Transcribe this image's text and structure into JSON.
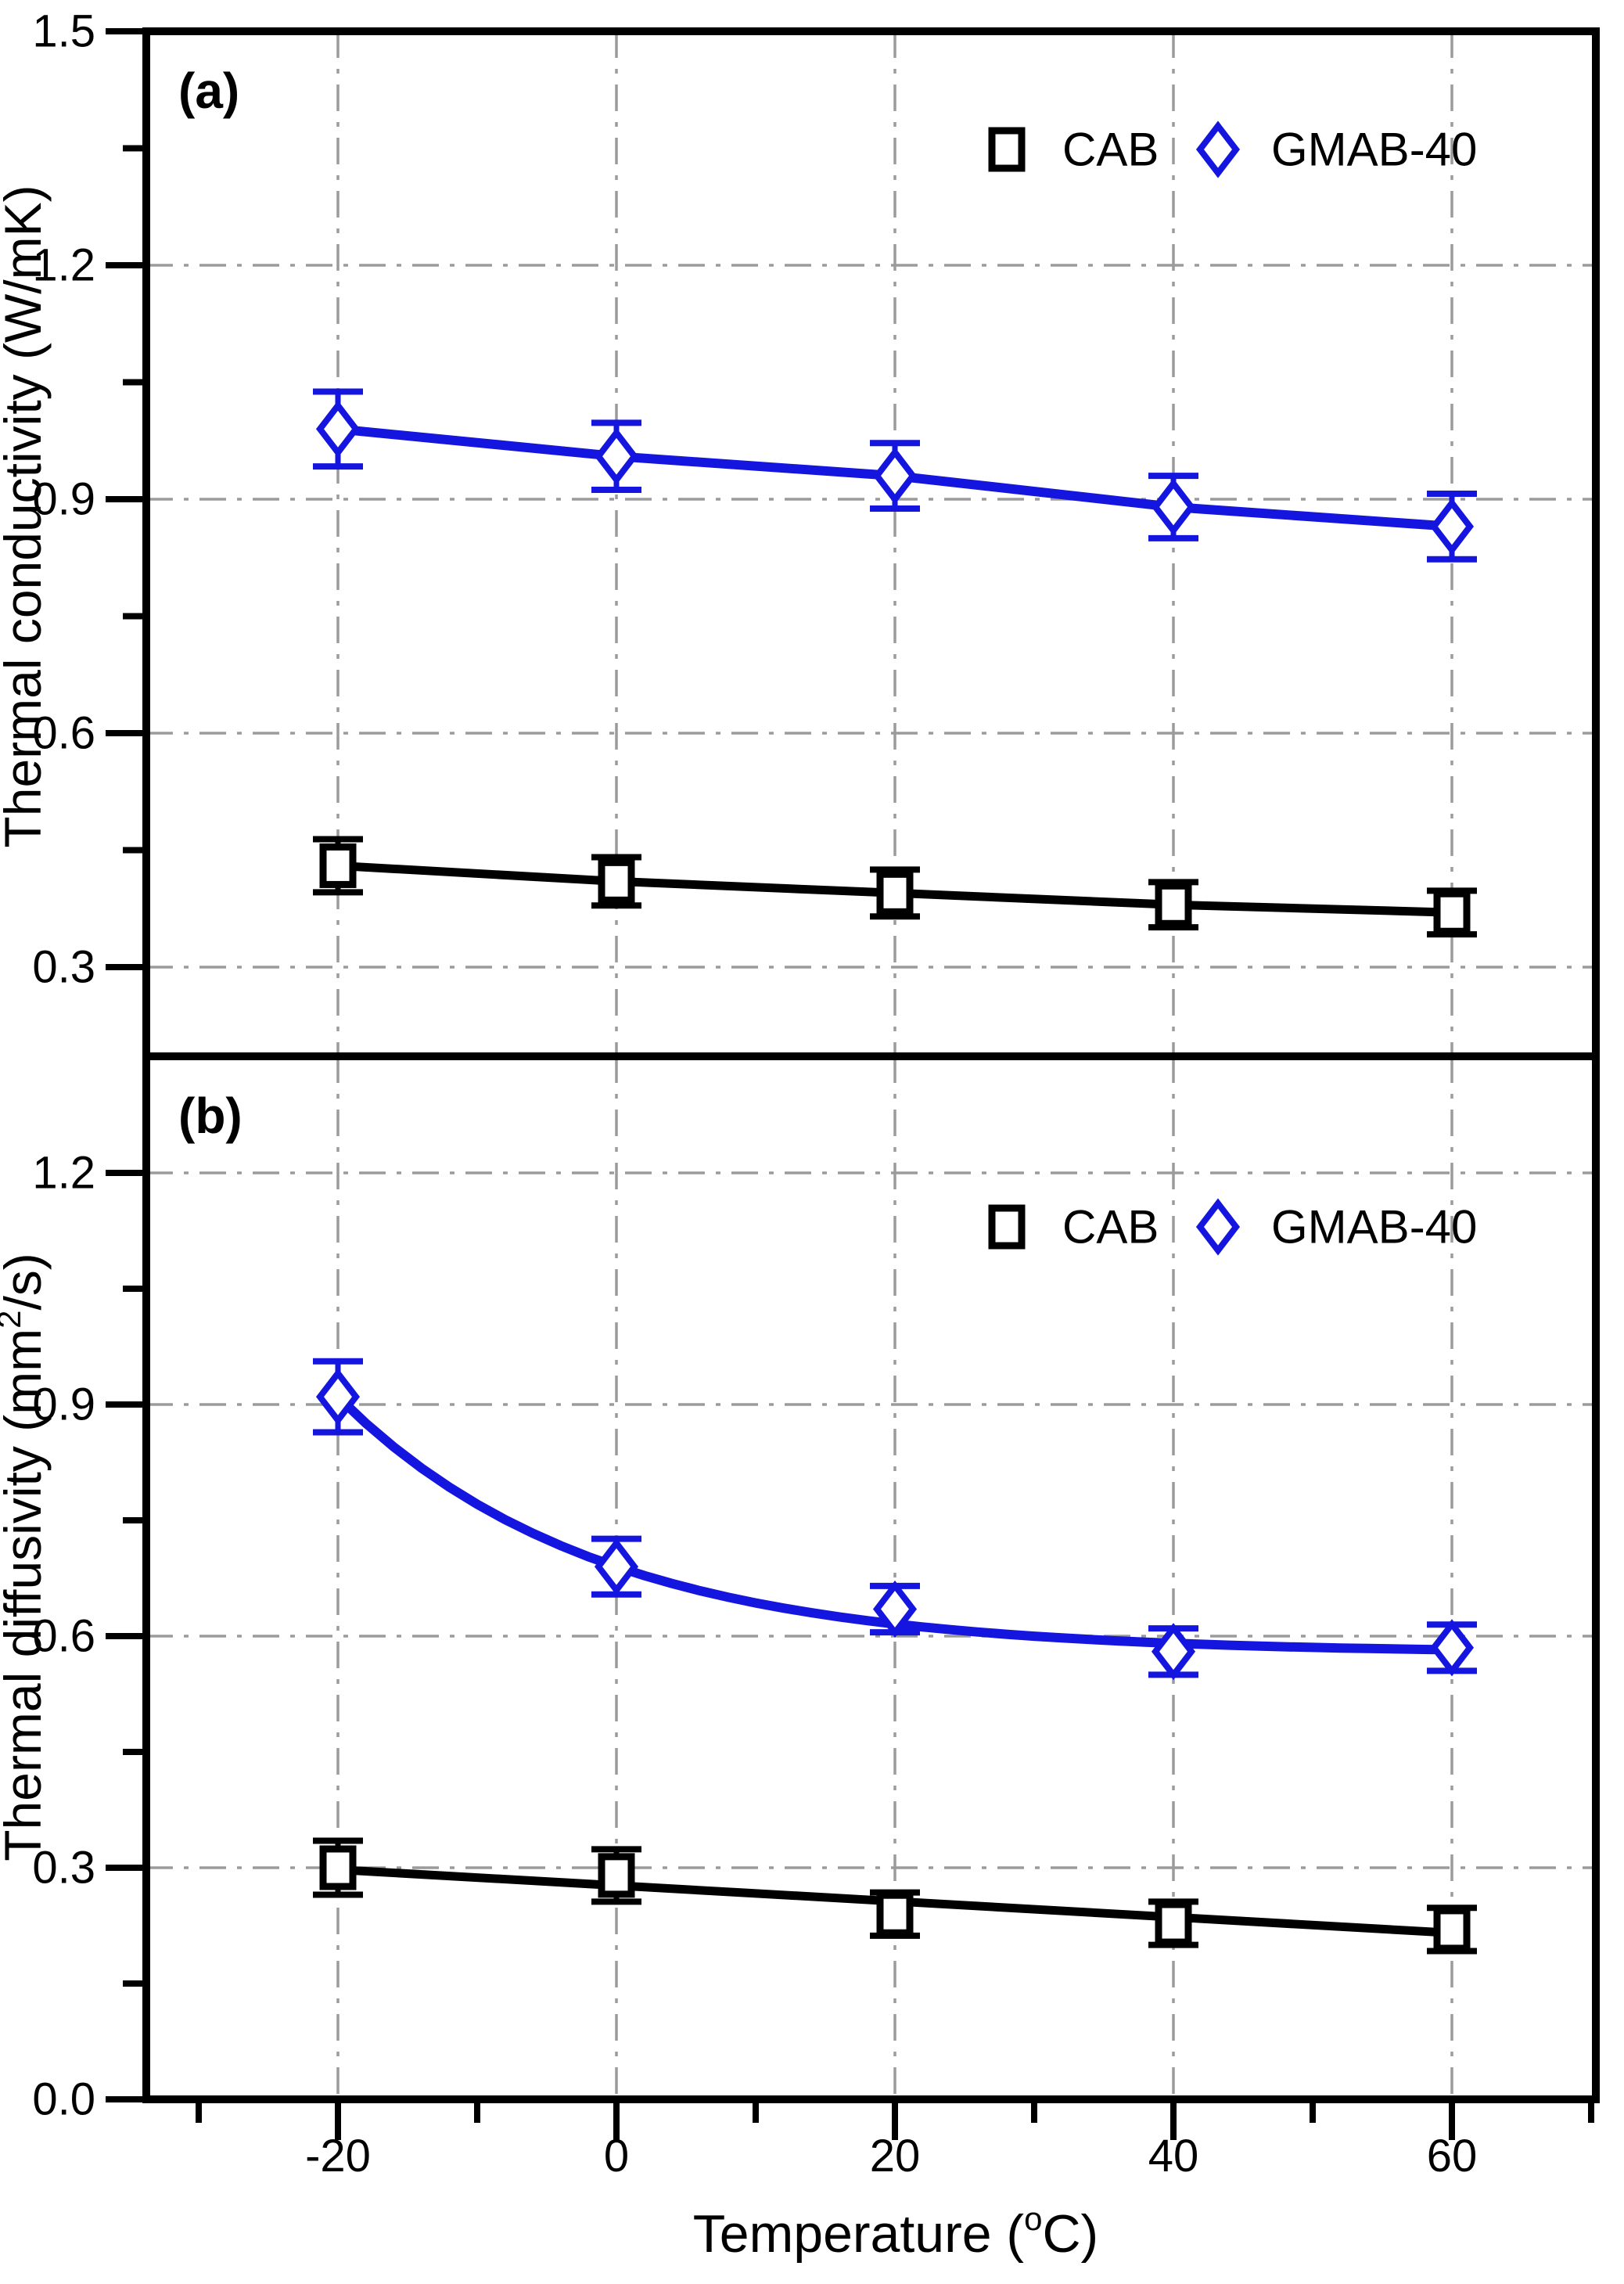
{
  "figure": {
    "background": "#ffffff",
    "xlabel": "Temperature (°C)",
    "xlabel_parts": {
      "pre": "Temperature (",
      "sup": "o",
      "post": "C)"
    },
    "colors": {
      "axis": "#000000",
      "grid": "#9b9b9b",
      "cab": "#000000",
      "gmab40": "#1515e0",
      "marker_fill": "#ffffff"
    }
  },
  "chart_data": [
    {
      "type": "line",
      "panel": "a",
      "title": "(a)",
      "ylabel": "Thermal conductivity (W/mK)",
      "xlabel": "Temperature (°C)",
      "xlim": [
        -33.8,
        70.3
      ],
      "ylim": [
        0.186,
        1.5
      ],
      "x": [
        -20,
        0,
        20,
        40,
        60
      ],
      "xtick_labels": [
        "-20",
        "0",
        "20",
        "40",
        "60"
      ],
      "xticks_minor": [
        -30,
        -10,
        10,
        30,
        50,
        70
      ],
      "yticks": [
        1.5,
        1.2,
        0.9,
        0.6,
        0.3
      ],
      "ytick_labels": [
        "1.5",
        "1.2",
        "0.9",
        "0.6",
        "0.3"
      ],
      "yticks_minor": [
        1.35,
        1.05,
        0.75,
        0.45
      ],
      "grid": "dash-dot",
      "legend_position": "inside-top-right",
      "series": [
        {
          "name": "CAB",
          "marker": "square",
          "color": "#000000",
          "values": [
            0.43,
            0.41,
            0.395,
            0.38,
            0.37
          ],
          "errors": [
            0.034,
            0.031,
            0.03,
            0.029,
            0.028
          ],
          "fit": {
            "type": "polyline"
          }
        },
        {
          "name": "GMAB-40",
          "marker": "diamond",
          "color": "#1515e0",
          "values": [
            0.99,
            0.955,
            0.93,
            0.89,
            0.865
          ],
          "errors": [
            0.048,
            0.043,
            0.042,
            0.04,
            0.042
          ],
          "fit": {
            "type": "polyline"
          }
        }
      ]
    },
    {
      "type": "line",
      "panel": "b",
      "title": "(b)",
      "ylabel": "Thermal diffusivity (mm²/s)",
      "ylabel_parts": {
        "pre": "Thermal diffusivity (mm",
        "sup": "2",
        "post": "/s)"
      },
      "xlabel": "Temperature (°C)",
      "xlim": [
        -33.8,
        70.3
      ],
      "ylim": [
        0,
        1.351
      ],
      "x": [
        -20,
        0,
        20,
        40,
        60
      ],
      "xtick_labels": [
        "-20",
        "0",
        "20",
        "40",
        "60"
      ],
      "xticks_minor": [
        -30,
        -10,
        10,
        30,
        50,
        70
      ],
      "yticks": [
        1.2,
        0.9,
        0.6,
        0.3,
        0.0
      ],
      "ytick_labels": [
        "1.2",
        "0.9",
        "0.6",
        "0.3",
        "0.0"
      ],
      "yticks_minor": [
        1.05,
        0.75,
        0.45,
        0.15
      ],
      "grid": "dash-dot",
      "legend_position": "inside-top-right",
      "series": [
        {
          "name": "CAB",
          "marker": "square",
          "color": "#000000",
          "values": [
            0.3,
            0.29,
            0.24,
            0.228,
            0.22
          ],
          "errors": [
            0.035,
            0.034,
            0.028,
            0.028,
            0.028
          ],
          "fit": {
            "type": "linear",
            "points": [
              [
                -20,
                0.2975
              ],
              [
                60,
                0.2155
              ]
            ]
          }
        },
        {
          "name": "GMAB-40",
          "marker": "diamond",
          "color": "#1515e0",
          "values": [
            0.91,
            0.69,
            0.635,
            0.58,
            0.585
          ],
          "errors": [
            0.046,
            0.036,
            0.03,
            0.03,
            0.03
          ],
          "fit": {
            "type": "exp_decay",
            "y0": 0.578,
            "amplitude": 0.332,
            "tau": 18.4,
            "x0": -20,
            "range": [
              -20,
              60
            ]
          }
        }
      ]
    }
  ]
}
